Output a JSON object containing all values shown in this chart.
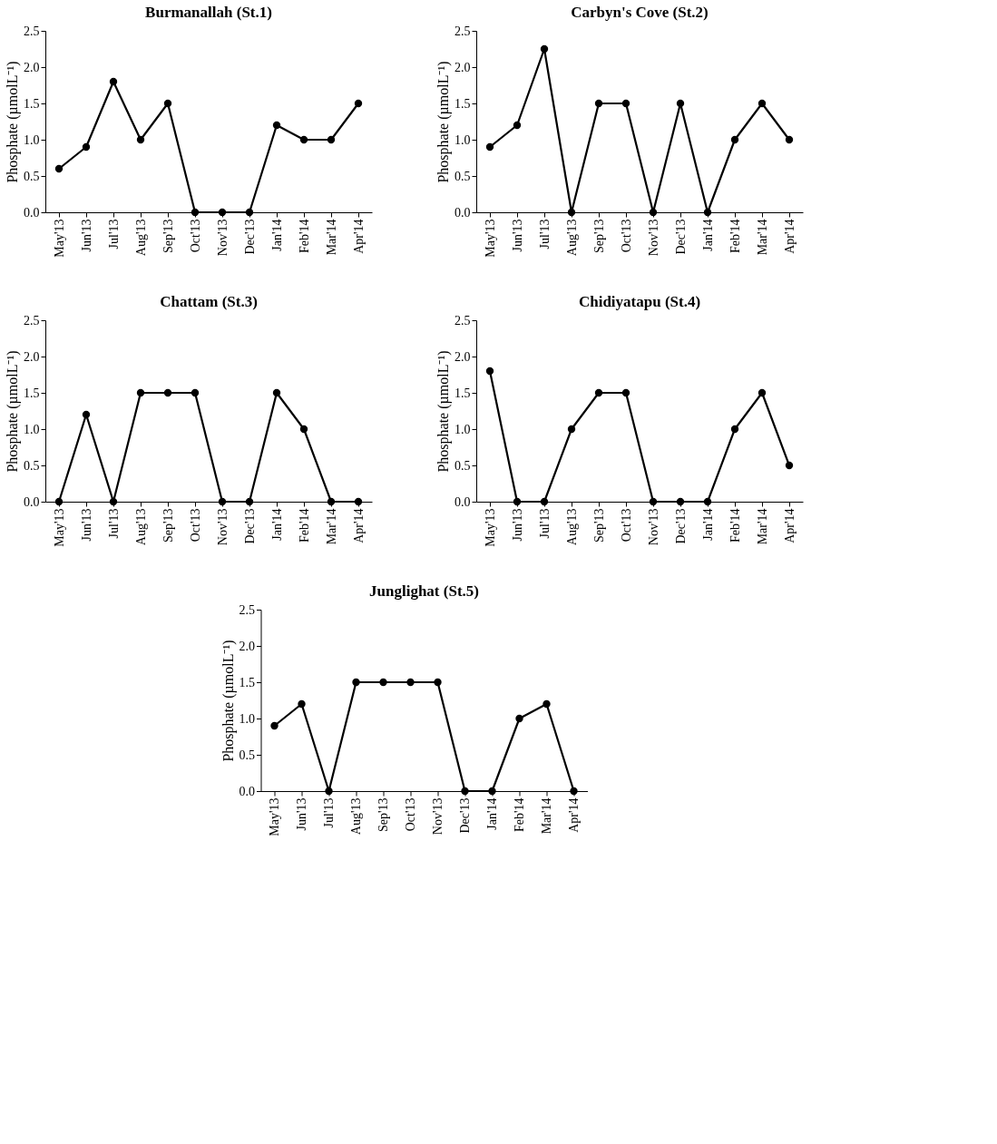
{
  "chart_data": [
    {
      "type": "line",
      "title": "Burmanallah (St.1)",
      "ylabel": "Phosphate (µmolL⁻¹)",
      "categories": [
        "May'13",
        "Jun'13",
        "Jul'13",
        "Aug'13",
        "Sep'13",
        "Oct'13",
        "Nov'13",
        "Dec'13",
        "Jan'14",
        "Feb'14",
        "Mar'14",
        "Apr'14"
      ],
      "series": [
        {
          "color": "#000000",
          "values": [
            0.6,
            0.9,
            1.8,
            1.0,
            1.5,
            0,
            0,
            0,
            1.2,
            1.0,
            1.0,
            1.5
          ]
        }
      ],
      "ylim": [
        0,
        2.5
      ],
      "yticks": [
        {
          "value": 0,
          "label": "0.0"
        },
        0.5,
        {
          "value": 1,
          "label": "1.0"
        },
        1.5,
        {
          "value": 2,
          "label": "2.0"
        },
        2.5
      ],
      "grid": false,
      "marker": "circle",
      "line_style": "solid"
    },
    {
      "type": "line",
      "title": "Carbyn's Cove (St.2)",
      "ylabel": "Phosphate (µmolL⁻¹)",
      "categories": [
        "May'13",
        "Jun'13",
        "Jul'13",
        "Aug'13",
        "Sep'13",
        "Oct'13",
        "Nov'13",
        "Dec'13",
        "Jan'14",
        "Feb'14",
        "Mar'14",
        "Apr'14"
      ],
      "series": [
        {
          "color": "#000000",
          "values": [
            0.9,
            1.2,
            2.25,
            0,
            1.5,
            1.5,
            0,
            1.5,
            0,
            1.0,
            1.5,
            1.0
          ]
        }
      ],
      "ylim": [
        0,
        2.5
      ],
      "yticks": [
        {
          "value": 0,
          "label": "0.0"
        },
        0.5,
        {
          "value": 1,
          "label": "1.0"
        },
        1.5,
        {
          "value": 2,
          "label": "2.0"
        },
        2.5
      ],
      "grid": false,
      "marker": "circle",
      "line_style": "solid"
    },
    {
      "type": "line",
      "title": "Chattam (St.3)",
      "ylabel": "Phosphate (µmolL⁻¹)",
      "categories": [
        "May'13",
        "Jun'13",
        "Jul'13",
        "Aug'13",
        "Sep'13",
        "Oct'13",
        "Nov'13",
        "Dec'13",
        "Jan'14",
        "Feb'14",
        "Mar'14",
        "Apr'14"
      ],
      "series": [
        {
          "color": "#000000",
          "values": [
            0,
            1.2,
            0,
            1.5,
            1.5,
            1.5,
            0,
            0,
            1.5,
            1.0,
            0,
            0
          ]
        }
      ],
      "ylim": [
        0,
        2.5
      ],
      "yticks": [
        {
          "value": 0,
          "label": "0.0"
        },
        0.5,
        {
          "value": 1,
          "label": "1.0"
        },
        1.5,
        {
          "value": 2,
          "label": "2.0"
        },
        2.5
      ],
      "grid": false,
      "marker": "circle",
      "line_style": "solid"
    },
    {
      "type": "line",
      "title": "Chidiyatapu (St.4)",
      "ylabel": "Phosphate (µmolL⁻¹)",
      "categories": [
        "May'13",
        "Jun'13",
        "Jul'13",
        "Aug'13",
        "Sep'13",
        "Oct'13",
        "Nov'13",
        "Dec'13",
        "Jan'14",
        "Feb'14",
        "Mar'14",
        "Apr'14"
      ],
      "series": [
        {
          "color": "#000000",
          "values": [
            1.8,
            0,
            0,
            1.0,
            1.5,
            1.5,
            0,
            0,
            0,
            1.0,
            1.5,
            0.5
          ]
        }
      ],
      "ylim": [
        0,
        2.5
      ],
      "yticks": [
        {
          "value": 0,
          "label": "0.0"
        },
        0.5,
        {
          "value": 1,
          "label": "1.0"
        },
        1.5,
        {
          "value": 2,
          "label": "2.0"
        },
        2.5
      ],
      "grid": false,
      "marker": "circle",
      "line_style": "solid"
    },
    {
      "type": "line",
      "title": "Junglighat (St.5)",
      "ylabel": "Phosphate (µmolL⁻¹)",
      "categories": [
        "May'13",
        "Jun'13",
        "Jul'13",
        "Aug'13",
        "Sep'13",
        "Oct'13",
        "Nov'13",
        "Dec'13",
        "Jan'14",
        "Feb'14",
        "Mar'14",
        "Apr'14"
      ],
      "series": [
        {
          "color": "#000000",
          "values": [
            0.9,
            1.2,
            0,
            1.5,
            1.5,
            1.5,
            1.5,
            0,
            0,
            1.0,
            1.2,
            0
          ]
        }
      ],
      "ylim": [
        0,
        2.5
      ],
      "yticks": [
        {
          "value": 0,
          "label": "0.0"
        },
        0.5,
        {
          "value": 1,
          "label": "1.0"
        },
        1.5,
        {
          "value": 2,
          "label": "2.0"
        },
        2.5
      ],
      "grid": false,
      "marker": "circle",
      "line_style": "solid"
    }
  ]
}
